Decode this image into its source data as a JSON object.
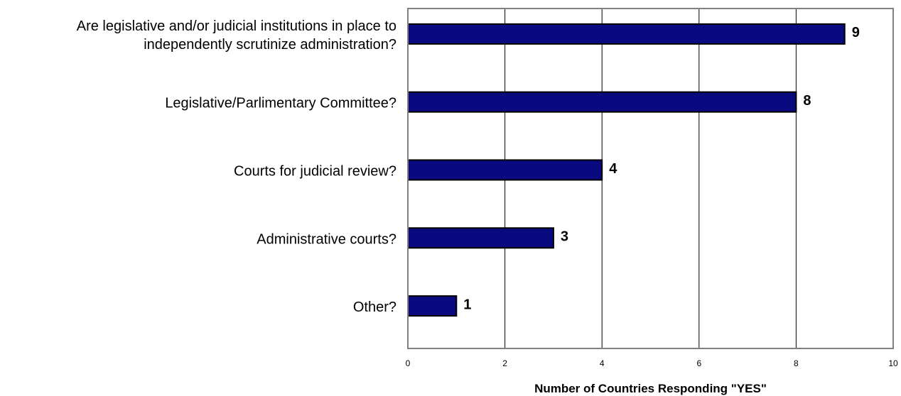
{
  "chart_data": {
    "type": "bar",
    "orientation": "horizontal",
    "categories": [
      [
        "Are legislative and/or judicial institutions in place to",
        "independently scrutinize administration?"
      ],
      [
        "Legislative/Parlimentary Committee?"
      ],
      [
        "Courts for judicial review?"
      ],
      [
        "Administrative courts?"
      ],
      [
        "Other?"
      ]
    ],
    "values": [
      9,
      8,
      4,
      3,
      1
    ],
    "data_labels": [
      "9",
      "8",
      "4",
      "3",
      "1"
    ],
    "xlabel": "Number of Countries Responding \"YES\"",
    "ylabel": "",
    "xlim": [
      0,
      10
    ],
    "xticks": [
      0,
      2,
      4,
      6,
      8,
      10
    ],
    "xtick_labels": [
      "0",
      "2",
      "4",
      "6",
      "8",
      "10"
    ],
    "grid": "vertical",
    "legend": "none",
    "colors": {
      "bar_fill": "#0a0a80",
      "bar_stroke": "#000000",
      "grid": "#000000",
      "frame": "#808080",
      "text": "#000000"
    }
  }
}
